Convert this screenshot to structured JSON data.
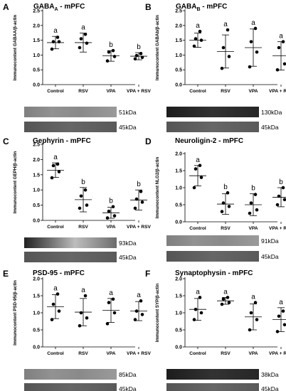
{
  "chart_data": [
    {
      "id": "A",
      "letter": "A",
      "type": "scatter",
      "title_main": "GABA",
      "title_sub": "A",
      "title_rest": " - mPFC",
      "ylabel": "Immunocontent GABAA/β-actin",
      "ylim": [
        0,
        2.5
      ],
      "yticks": [
        "0.0",
        "0.5",
        "1.0",
        "1.5",
        "2.0",
        "2.5"
      ],
      "ytick_values": [
        0,
        0.5,
        1.0,
        1.5,
        2.0,
        2.5
      ],
      "categories": [
        "Control",
        "RSV",
        "VPA",
        "VPA + RSV"
      ],
      "mean": [
        1.42,
        1.42,
        0.97,
        0.96
      ],
      "sd": [
        0.21,
        0.32,
        0.18,
        0.12
      ],
      "points": [
        [
          1.2,
          1.45,
          1.45,
          1.6
        ],
        [
          1.25,
          1.4,
          1.55,
          1.7
        ],
        [
          0.8,
          0.95,
          1.1,
          1.15
        ],
        [
          0.87,
          0.92,
          0.98,
          1.05
        ]
      ],
      "letters": [
        "a",
        "a",
        "b",
        "b"
      ],
      "blots": [
        {
          "label": "51kDa",
          "tone": "light"
        },
        {
          "label": "45kDa",
          "tone": "mid"
        }
      ]
    },
    {
      "id": "B",
      "letter": "B",
      "type": "scatter",
      "title_main": "GABA",
      "title_sub": "B",
      "title_rest": " - mPFC",
      "ylabel": "Immunocontent GABAb/β-actin",
      "ylim": [
        0,
        2.5
      ],
      "yticks": [
        "0.0",
        "0.5",
        "1.0",
        "1.5",
        "2.0",
        "2.5"
      ],
      "ytick_values": [
        0,
        0.5,
        1.0,
        1.5,
        2.0,
        2.5
      ],
      "categories": [
        "Control",
        "RSV",
        "VPA",
        "VPA + RSV"
      ],
      "mean": [
        1.5,
        1.12,
        1.25,
        0.97
      ],
      "sd": [
        0.24,
        0.56,
        0.63,
        0.48
      ],
      "points": [
        [
          1.3,
          1.5,
          1.55,
          1.8
        ],
        [
          0.55,
          0.95,
          1.25,
          1.85
        ],
        [
          0.6,
          1.1,
          1.45,
          1.9
        ],
        [
          0.5,
          0.7,
          1.25,
          1.45
        ]
      ],
      "letters": [
        "a",
        "a",
        "a",
        "a"
      ],
      "blots": [
        {
          "label": "130kDa",
          "tone": "dark"
        },
        {
          "label": "45kDa",
          "tone": "mid"
        }
      ]
    },
    {
      "id": "C",
      "letter": "C",
      "type": "scatter",
      "title_main": "Gephyrin - mPFC",
      "title_sub": "",
      "title_rest": "",
      "ylabel": "Immunocontent GEPH/β-actin",
      "ylim": [
        0,
        2.5
      ],
      "yticks": [
        "0.0",
        "0.5",
        "1.0",
        "1.5",
        "2.0",
        "2.5"
      ],
      "ytick_values": [
        0,
        0.5,
        1.0,
        1.5,
        2.0,
        2.5
      ],
      "categories": [
        "Control",
        "RSV",
        "VPA",
        "VPA + RSV"
      ],
      "mean": [
        1.65,
        0.68,
        0.25,
        0.67
      ],
      "sd": [
        0.24,
        0.4,
        0.18,
        0.33
      ],
      "points": [
        [
          1.4,
          1.6,
          1.8,
          1.85
        ],
        [
          0.4,
          0.5,
          0.8,
          1.0
        ],
        [
          0.08,
          0.15,
          0.3,
          0.45
        ],
        [
          0.4,
          0.6,
          0.7,
          0.95
        ]
      ],
      "letters": [
        "a",
        "b",
        "b",
        "b"
      ],
      "blots": [
        {
          "label": "93kDa",
          "tone": "gradient"
        },
        {
          "label": "45kDa",
          "tone": "mid"
        }
      ]
    },
    {
      "id": "D",
      "letter": "D",
      "type": "scatter",
      "title_main": "Neuroligin-2 - mPFC",
      "title_sub": "",
      "title_rest": "",
      "ylabel": "Immunocontent NLG2/β-actin",
      "ylim": [
        0,
        2.0
      ],
      "yticks": [
        "0.0",
        "0.5",
        "1.0",
        "1.5",
        "2.0"
      ],
      "ytick_values": [
        0,
        0.5,
        1.0,
        1.5,
        2.0
      ],
      "categories": [
        "Control",
        "RSV",
        "VPA",
        "VPA + RSV"
      ],
      "mean": [
        1.35,
        0.52,
        0.5,
        0.72
      ],
      "sd": [
        0.3,
        0.3,
        0.32,
        0.28
      ],
      "points": [
        [
          1.0,
          1.3,
          1.55,
          1.65
        ],
        [
          0.3,
          0.45,
          0.55,
          0.85
        ],
        [
          0.25,
          0.35,
          0.55,
          0.8
        ],
        [
          0.5,
          0.65,
          0.75,
          1.0
        ]
      ],
      "letters": [
        "a",
        "b",
        "b",
        "b"
      ],
      "blots": [
        {
          "label": "91kDa",
          "tone": "light"
        },
        {
          "label": "45kDa",
          "tone": "mid"
        }
      ]
    },
    {
      "id": "E",
      "letter": "E",
      "type": "scatter",
      "title_main": "PSD-95 - mPFC",
      "title_sub": "",
      "title_rest": "",
      "ylabel": "Immunocontent PSD-95/β-actin",
      "ylim": [
        0,
        2.0
      ],
      "yticks": [
        "0.0",
        "0.5",
        "1.0",
        "1.5",
        "2.0"
      ],
      "ytick_values": [
        0,
        0.5,
        1.0,
        1.5,
        2.0
      ],
      "categories": [
        "Control",
        "RSV",
        "VPA",
        "VPA + RSV"
      ],
      "mean": [
        1.18,
        1.02,
        1.07,
        1.05
      ],
      "sd": [
        0.35,
        0.4,
        0.35,
        0.28
      ],
      "points": [
        [
          0.8,
          1.05,
          1.25,
          1.55
        ],
        [
          0.62,
          0.85,
          1.0,
          1.5
        ],
        [
          0.68,
          1.0,
          1.3,
          1.4
        ],
        [
          0.8,
          0.95,
          1.05,
          1.35
        ]
      ],
      "letters": [
        "a",
        "a",
        "a",
        "a"
      ],
      "blots": [
        {
          "label": "85kDa",
          "tone": "light"
        },
        {
          "label": "45kDa",
          "tone": "mid"
        }
      ]
    },
    {
      "id": "F",
      "letter": "F",
      "type": "scatter",
      "title_main": "Synaptophysin - mPFC",
      "title_sub": "",
      "title_rest": "",
      "ylabel": "Immunocontent SYP/β-actin",
      "ylim": [
        0,
        2.0
      ],
      "yticks": [
        "0.0",
        "0.5",
        "1.0",
        "1.5",
        "2.0"
      ],
      "ytick_values": [
        0,
        0.5,
        1.0,
        1.5,
        2.0
      ],
      "categories": [
        "Control",
        "RSV",
        "VPA",
        "VPA + RSV"
      ],
      "mean": [
        1.1,
        1.35,
        0.88,
        0.8
      ],
      "sd": [
        0.32,
        0.1,
        0.38,
        0.35
      ],
      "points": [
        [
          0.8,
          1.0,
          1.1,
          1.45
        ],
        [
          1.25,
          1.3,
          1.4,
          1.45
        ],
        [
          0.5,
          0.8,
          1.0,
          1.3
        ],
        [
          0.45,
          0.65,
          0.9,
          1.05
        ]
      ],
      "letters": [
        "a",
        "a",
        "a",
        "a"
      ],
      "blots": [
        {
          "label": "38kDa",
          "tone": "dark"
        },
        {
          "label": "45kDa",
          "tone": "mid"
        }
      ]
    }
  ]
}
